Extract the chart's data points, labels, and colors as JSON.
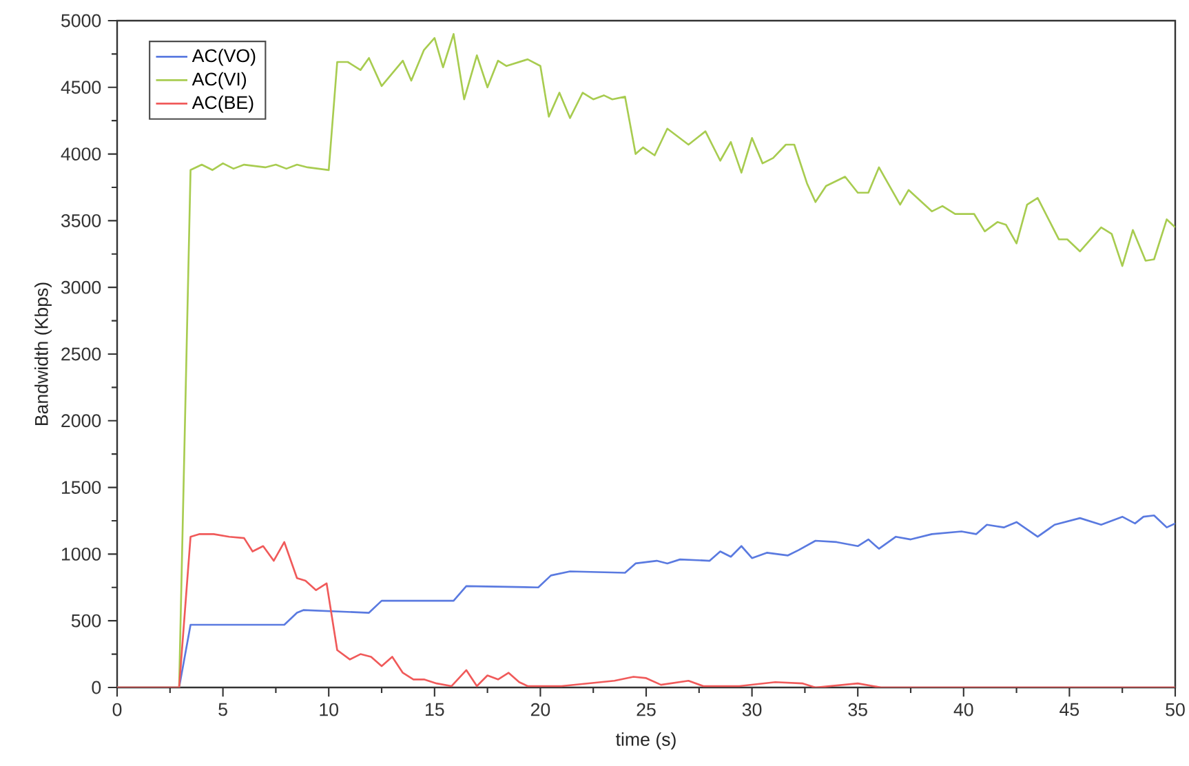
{
  "chart_data": {
    "type": "line",
    "xlabel": "time (s)",
    "ylabel": "Bandwidth (Kbps)",
    "xlim": [
      0,
      50
    ],
    "ylim": [
      0,
      5000
    ],
    "xticks": [
      0,
      5,
      10,
      15,
      20,
      25,
      30,
      35,
      40,
      45,
      50
    ],
    "yticks": [
      0,
      500,
      1000,
      1500,
      2000,
      2500,
      3000,
      3500,
      4000,
      4500,
      5000
    ],
    "grid": false,
    "legend": "top left",
    "marker": "none",
    "line_style": "solid",
    "series": [
      {
        "name": "AC(VO)",
        "color": "#5a7ae0",
        "x": [
          0,
          2.93,
          3.47,
          7.9,
          8.5,
          8.8,
          11.9,
          12.5,
          15.9,
          16.5,
          19.9,
          20.5,
          21.4,
          24,
          24.5,
          25.5,
          26,
          26.6,
          28,
          28.5,
          29,
          29.5,
          30,
          30.7,
          31.7,
          32.2,
          33,
          34,
          35,
          35.5,
          36,
          36.8,
          37.5,
          38.5,
          39.9,
          40.6,
          41.1,
          41.9,
          42.5,
          43.5,
          44.3,
          45.5,
          46.5,
          47.5,
          48.1,
          48.5,
          49,
          49.6,
          50
        ],
        "values": [
          0,
          0,
          470,
          470,
          560,
          580,
          560,
          650,
          650,
          760,
          750,
          840,
          870,
          860,
          930,
          950,
          930,
          960,
          950,
          1020,
          980,
          1060,
          970,
          1010,
          990,
          1030,
          1100,
          1090,
          1060,
          1110,
          1040,
          1130,
          1110,
          1150,
          1170,
          1150,
          1220,
          1200,
          1240,
          1130,
          1220,
          1270,
          1220,
          1280,
          1230,
          1280,
          1290,
          1200,
          1230
        ]
      },
      {
        "name": "AC(VI)",
        "color": "#a8cc50",
        "x": [
          0,
          2.93,
          3.47,
          4,
          4.5,
          5,
          5.5,
          6,
          7,
          7.5,
          8,
          8.5,
          9,
          10,
          10.4,
          10.9,
          11.5,
          11.9,
          12.5,
          13.5,
          13.9,
          14.5,
          15,
          15.4,
          15.9,
          16.4,
          17,
          17.5,
          18,
          18.4,
          19.4,
          20,
          20.4,
          20.9,
          21.4,
          22,
          22.5,
          23,
          23.4,
          24,
          24.5,
          24.85,
          25.4,
          26,
          27,
          27.8,
          28.5,
          29,
          29.5,
          30,
          30.5,
          31,
          31.6,
          32,
          32.6,
          33,
          33.5,
          34.4,
          35,
          35.5,
          36,
          37,
          37.4,
          38.5,
          39,
          39.6,
          40.5,
          41,
          41.6,
          42,
          42.5,
          43,
          43.5,
          44.5,
          44.9,
          45.5,
          46.5,
          47,
          47.5,
          48,
          48.6,
          49,
          49.6,
          50
        ],
        "values": [
          0,
          0,
          3880,
          3920,
          3880,
          3930,
          3890,
          3920,
          3900,
          3920,
          3890,
          3920,
          3900,
          3880,
          4690,
          4690,
          4630,
          4720,
          4510,
          4700,
          4550,
          4780,
          4870,
          4650,
          4900,
          4410,
          4740,
          4500,
          4700,
          4660,
          4710,
          4660,
          4280,
          4460,
          4270,
          4460,
          4410,
          4440,
          4410,
          4430,
          4000,
          4050,
          3990,
          4190,
          4070,
          4170,
          3950,
          4090,
          3860,
          4120,
          3930,
          3970,
          4070,
          4070,
          3780,
          3640,
          3760,
          3830,
          3710,
          3710,
          3900,
          3620,
          3730,
          3570,
          3610,
          3550,
          3550,
          3420,
          3490,
          3470,
          3330,
          3620,
          3670,
          3360,
          3360,
          3270,
          3450,
          3400,
          3160,
          3430,
          3200,
          3210,
          3510,
          3450
        ]
      },
      {
        "name": "AC(BE)",
        "color": "#f05a5a",
        "x": [
          0,
          2.93,
          3.47,
          3.9,
          4.56,
          5.3,
          6,
          6.4,
          6.9,
          7.4,
          7.9,
          8.5,
          8.9,
          9.4,
          9.9,
          10.4,
          11,
          11.5,
          12,
          12.5,
          13,
          13.5,
          14,
          14.5,
          15.1,
          15.8,
          16.5,
          17,
          17.5,
          18,
          18.5,
          19,
          19.4,
          21,
          23.5,
          24.4,
          25,
          25.7,
          27,
          27.7,
          29.4,
          31.1,
          32.4,
          33,
          35,
          36.1,
          50
        ],
        "values": [
          0,
          0,
          1130,
          1150,
          1150,
          1130,
          1120,
          1020,
          1060,
          950,
          1090,
          820,
          800,
          730,
          780,
          280,
          210,
          250,
          230,
          160,
          230,
          110,
          60,
          60,
          30,
          10,
          130,
          10,
          90,
          60,
          110,
          40,
          10,
          10,
          50,
          80,
          70,
          20,
          50,
          10,
          10,
          40,
          30,
          0,
          30,
          0,
          0
        ]
      }
    ]
  }
}
